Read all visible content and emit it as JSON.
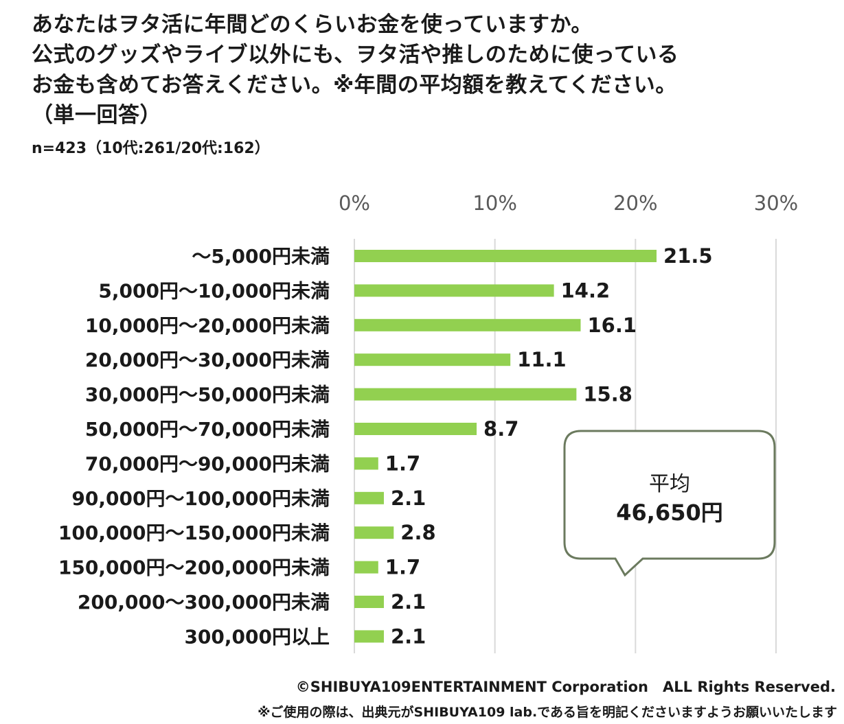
{
  "title_lines": [
    "あなたはヲタ活に年間どのくらいお金を使っていますか。",
    "公式のグッズやライブ以外にも、ヲタ活や推しのために使っている",
    "お金も含めてお答えください。※年間の平均額を教えてください。",
    "（単一回答）"
  ],
  "sample_note": "n=423（10代:261/20代:162）",
  "callout": {
    "label": "平均",
    "value": "46,650円"
  },
  "footer": {
    "copyright": "©SHIBUYA109ENTERTAINMENT Corporation　ALL Rights Reserved.",
    "notice": "※ご使用の際は、出典元がSHIBUYA109 lab.である旨を明記くださいますようお願いいたします"
  },
  "colors": {
    "bar": "#92d050",
    "grid": "#d9d9d9",
    "callout_border": "#6b7a5e",
    "text": "#1a1a1a",
    "axis_text": "#595959"
  },
  "chart_data": {
    "type": "bar",
    "orientation": "horizontal",
    "categories": [
      "～5,000円未満",
      "5,000円～10,000円未満",
      "10,000円～20,000円未満",
      "20,000円～30,000円未満",
      "30,000円～50,000円未満",
      "50,000円～70,000円未満",
      "70,000円～90,000円未満",
      "90,000円～100,000円未満",
      "100,000円～150,000円未満",
      "150,000円～200,000円未満",
      "200,000～300,000円未満",
      "300,000円以上"
    ],
    "values": [
      21.5,
      14.2,
      16.1,
      11.1,
      15.8,
      8.7,
      1.7,
      2.1,
      2.8,
      1.7,
      2.1,
      2.1
    ],
    "value_labels": [
      "21.5",
      "14.2",
      "16.1",
      "11.1",
      "15.8",
      "8.7",
      "1.7",
      "2.1",
      "2.8",
      "1.7",
      "2.1",
      "2.1"
    ],
    "xlim": [
      0,
      30
    ],
    "xticks": [
      0,
      10,
      20,
      30
    ],
    "xtick_labels": [
      "0%",
      "10%",
      "20%",
      "30%"
    ],
    "axis_position": "top",
    "grid": true,
    "unit": "%"
  }
}
